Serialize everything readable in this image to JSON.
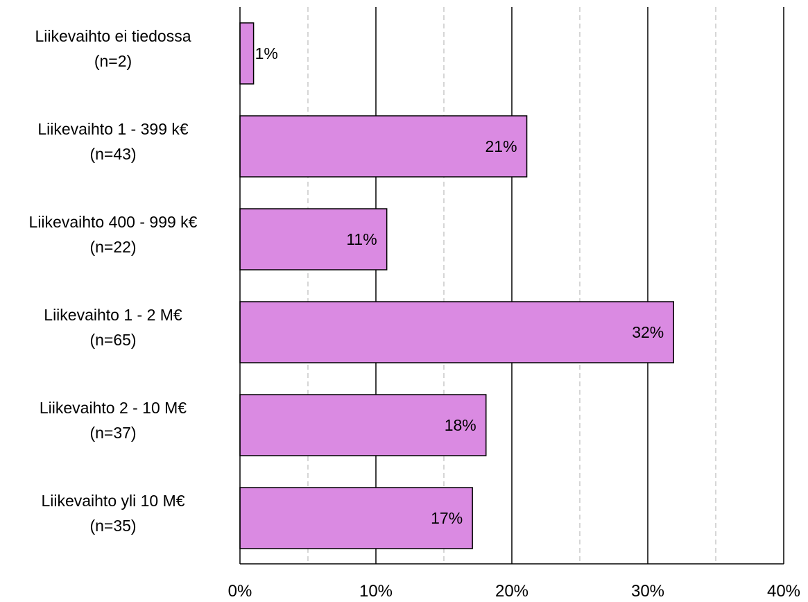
{
  "chart_data": {
    "type": "bar",
    "orientation": "horizontal",
    "categories": [
      [
        "Liikevaihto ei tiedossa",
        "(n=2)"
      ],
      [
        "Liikevaihto 1 - 399 k€",
        "(n=43)"
      ],
      [
        "Liikevaihto 400 - 999 k€",
        "(n=22)"
      ],
      [
        "Liikevaihto 1 - 2 M€",
        "(n=65)"
      ],
      [
        "Liikevaihto 2 - 10 M€",
        "(n=37)"
      ],
      [
        "Liikevaihto yli 10 M€",
        "(n=35)"
      ]
    ],
    "values": [
      1,
      21.1,
      10.8,
      31.9,
      18.1,
      17.1
    ],
    "data_labels": [
      "1%",
      "21%",
      "11%",
      "32%",
      "18%",
      "17%"
    ],
    "xlim": [
      0,
      40
    ],
    "x_ticks": [
      0,
      10,
      20,
      30,
      40
    ],
    "x_tick_labels": [
      "0%",
      "10%",
      "20%",
      "30%",
      "40%"
    ],
    "minor_grid_ticks": [
      5,
      15,
      25,
      35
    ],
    "grid": true,
    "bar_color": "#DA8AE2",
    "bar_edge_color": "#000000",
    "title": "",
    "xlabel": "",
    "ylabel": ""
  }
}
